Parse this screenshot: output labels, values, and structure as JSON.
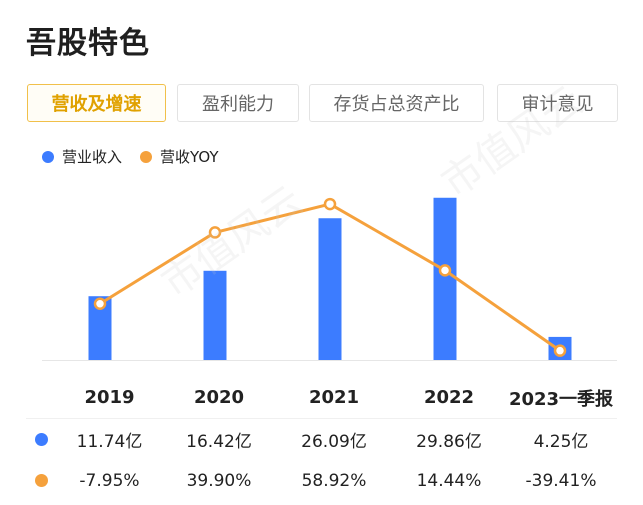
{
  "page": {
    "title": "吾股特色"
  },
  "tabs": [
    {
      "label": "营收及增速",
      "active": true
    },
    {
      "label": "盈利能力",
      "active": false
    },
    {
      "label": "存货占总资产比",
      "active": false
    },
    {
      "label": "审计意见",
      "active": false
    }
  ],
  "colors": {
    "bar": "#3c7cff",
    "line": "#f5a13c",
    "accent_tab": "#f1c04a"
  },
  "watermark": "市值风云",
  "chart_data": {
    "type": "bar",
    "categories": [
      "2019",
      "2020",
      "2021",
      "2022",
      "2023一季报"
    ],
    "series": [
      {
        "name": "营业收入",
        "type": "bar",
        "values": [
          11.74,
          16.42,
          26.09,
          29.86,
          4.25
        ],
        "labels": [
          "11.74亿",
          "16.42亿",
          "26.09亿",
          "29.86亿",
          "4.25亿"
        ]
      },
      {
        "name": "营收YOY",
        "type": "line",
        "values": [
          -7.95,
          39.9,
          58.92,
          14.44,
          -39.41
        ],
        "labels": [
          "-7.95%",
          "39.90%",
          "58.92%",
          "14.44%",
          "-39.41%"
        ]
      }
    ],
    "ylim_bar": [
      0,
      30
    ],
    "ylim_line": [
      -45,
      63
    ],
    "legend_position": "top-left",
    "grid": false
  }
}
